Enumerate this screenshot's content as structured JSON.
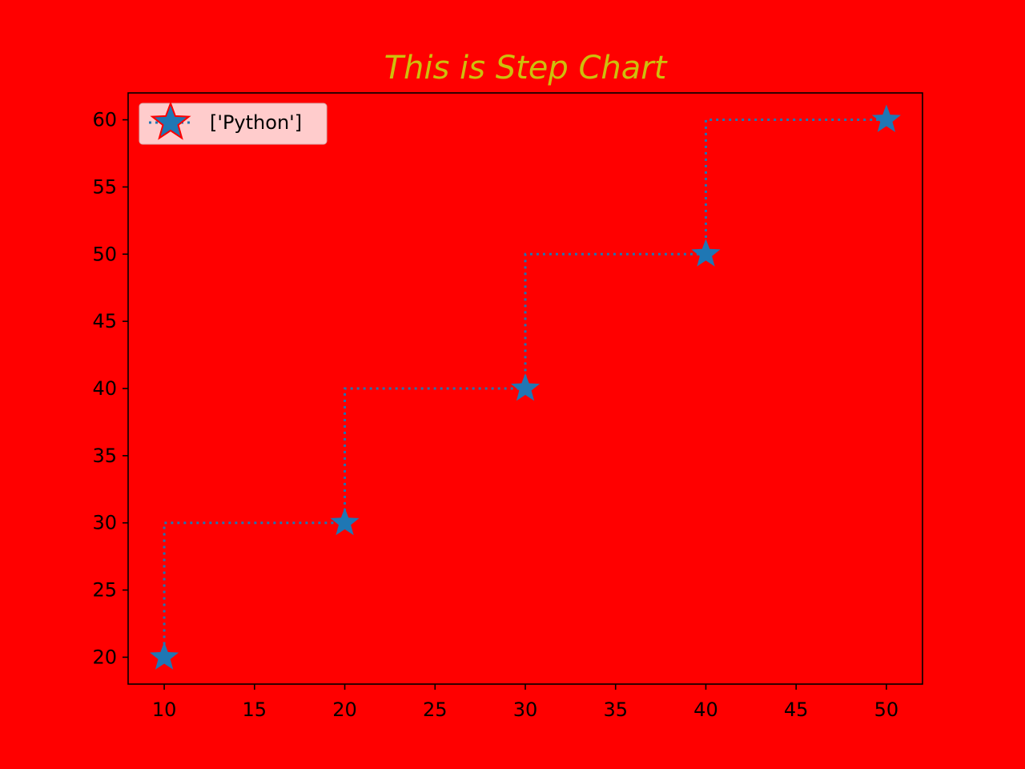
{
  "chart_data": {
    "type": "line",
    "step": "pre",
    "title": "This is Step Chart",
    "xlabel": "",
    "ylabel": "",
    "x": [
      10,
      20,
      30,
      40,
      50
    ],
    "series": [
      {
        "name": "['Python']",
        "values": [
          20,
          30,
          40,
          50,
          60
        ],
        "line_style": "dotted",
        "marker": "star",
        "color": "#1f77b4",
        "legend_marker_edge_color": "#ff0000"
      }
    ],
    "xlim": [
      8,
      52
    ],
    "ylim": [
      18,
      62
    ],
    "xticks": [
      10,
      15,
      20,
      25,
      30,
      35,
      40,
      45,
      50
    ],
    "yticks": [
      20,
      25,
      30,
      35,
      40,
      45,
      50,
      55,
      60
    ],
    "grid": false,
    "legend_position": "upper-left",
    "background_color": "#ff0000",
    "plot_background_color": "#ff0000",
    "title_color": "#cdbf0c",
    "legend_background_color": "#ffcccc"
  }
}
